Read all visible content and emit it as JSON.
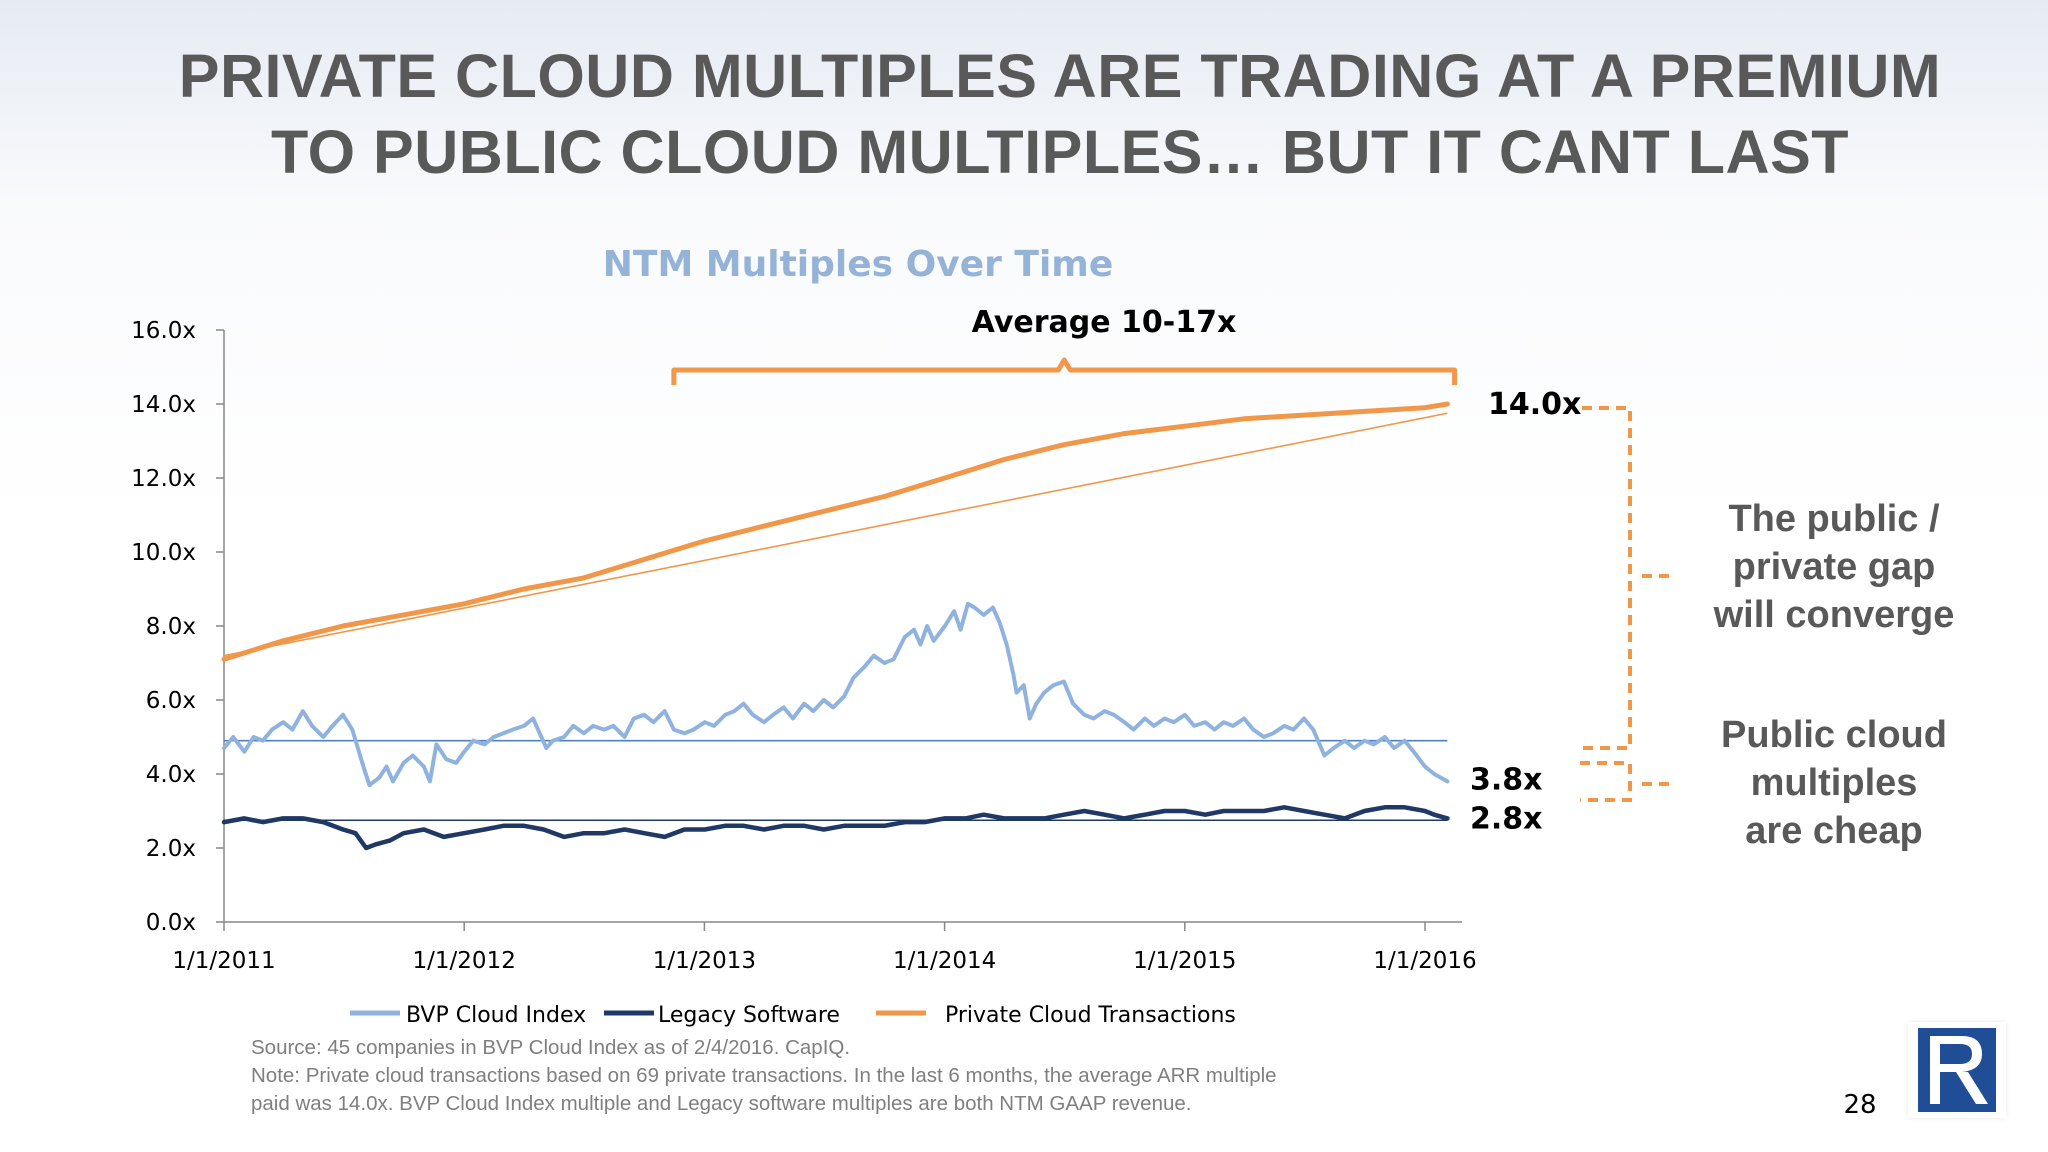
{
  "slide": {
    "title_lines": [
      "PRIVATE CLOUD MULTIPLES ARE TRADING AT A PREMIUM",
      "TO PUBLIC CLOUD MULTIPLES… BUT IT CANT LAST"
    ],
    "page_number": "28"
  },
  "callouts": {
    "gap": [
      "The public /",
      "private gap",
      "will converge"
    ],
    "cheap": [
      "Public cloud",
      "multiples",
      "are cheap"
    ]
  },
  "notes": {
    "source": "Source: 45 companies in BVP Cloud Index as of 2/4/2016.  CapIQ.",
    "note_line1": "Note: Private cloud transactions based on 69 private transactions.  In the last 6 months, the average ARR multiple",
    "note_line2": "paid was 14.0x.  BVP Cloud Index multiple and Legacy software multiples are both NTM GAAP revenue."
  },
  "colors": {
    "bvp": "#8fb3de",
    "legacy": "#1f3864",
    "private": "#f0974a",
    "title": "#595959",
    "chart_title": "#95b3d7",
    "logo": "#1f4e96"
  },
  "chart_data": {
    "type": "line",
    "title": "NTM Multiples Over Time",
    "xlabel": "",
    "ylabel": "",
    "x_ticks": [
      "1/1/2011",
      "1/1/2012",
      "1/1/2013",
      "1/1/2014",
      "1/1/2015",
      "1/1/2016"
    ],
    "y_ticks": [
      "0.0x",
      "2.0x",
      "4.0x",
      "6.0x",
      "8.0x",
      "10.0x",
      "12.0x",
      "14.0x",
      "16.0x"
    ],
    "xlim": [
      "2011-01-01",
      "2016-02-04"
    ],
    "ylim": [
      0,
      16
    ],
    "grid": false,
    "legend_position": "bottom",
    "series": [
      {
        "name": "BVP Cloud Index",
        "color": "#8fb3de",
        "points": [
          [
            "2011-01-01",
            4.7
          ],
          [
            "2011-01-15",
            5.0
          ],
          [
            "2011-02-01",
            4.6
          ],
          [
            "2011-02-15",
            5.0
          ],
          [
            "2011-03-01",
            4.9
          ],
          [
            "2011-03-15",
            5.2
          ],
          [
            "2011-04-01",
            5.4
          ],
          [
            "2011-04-15",
            5.2
          ],
          [
            "2011-05-01",
            5.7
          ],
          [
            "2011-05-15",
            5.3
          ],
          [
            "2011-06-01",
            5.0
          ],
          [
            "2011-06-15",
            5.3
          ],
          [
            "2011-07-01",
            5.6
          ],
          [
            "2011-07-15",
            5.2
          ],
          [
            "2011-08-01",
            4.2
          ],
          [
            "2011-08-10",
            3.7
          ],
          [
            "2011-08-25",
            3.9
          ],
          [
            "2011-09-05",
            4.2
          ],
          [
            "2011-09-15",
            3.8
          ],
          [
            "2011-10-01",
            4.3
          ],
          [
            "2011-10-15",
            4.5
          ],
          [
            "2011-11-01",
            4.2
          ],
          [
            "2011-11-10",
            3.8
          ],
          [
            "2011-11-20",
            4.8
          ],
          [
            "2011-12-05",
            4.4
          ],
          [
            "2011-12-20",
            4.3
          ],
          [
            "2012-01-01",
            4.6
          ],
          [
            "2012-01-15",
            4.9
          ],
          [
            "2012-02-01",
            4.8
          ],
          [
            "2012-02-15",
            5.0
          ],
          [
            "2012-03-01",
            5.1
          ],
          [
            "2012-03-15",
            5.2
          ],
          [
            "2012-04-01",
            5.3
          ],
          [
            "2012-04-15",
            5.5
          ],
          [
            "2012-04-25",
            5.1
          ],
          [
            "2012-05-05",
            4.7
          ],
          [
            "2012-05-15",
            4.9
          ],
          [
            "2012-06-01",
            5.0
          ],
          [
            "2012-06-15",
            5.3
          ],
          [
            "2012-07-01",
            5.1
          ],
          [
            "2012-07-15",
            5.3
          ],
          [
            "2012-08-01",
            5.2
          ],
          [
            "2012-08-15",
            5.3
          ],
          [
            "2012-09-01",
            5.0
          ],
          [
            "2012-09-15",
            5.5
          ],
          [
            "2012-10-01",
            5.6
          ],
          [
            "2012-10-15",
            5.4
          ],
          [
            "2012-11-01",
            5.7
          ],
          [
            "2012-11-15",
            5.2
          ],
          [
            "2012-12-01",
            5.1
          ],
          [
            "2012-12-15",
            5.2
          ],
          [
            "2013-01-01",
            5.4
          ],
          [
            "2013-01-15",
            5.3
          ],
          [
            "2013-02-01",
            5.6
          ],
          [
            "2013-02-15",
            5.7
          ],
          [
            "2013-03-01",
            5.9
          ],
          [
            "2013-03-15",
            5.6
          ],
          [
            "2013-04-01",
            5.4
          ],
          [
            "2013-04-15",
            5.6
          ],
          [
            "2013-05-01",
            5.8
          ],
          [
            "2013-05-15",
            5.5
          ],
          [
            "2013-06-01",
            5.9
          ],
          [
            "2013-06-15",
            5.7
          ],
          [
            "2013-07-01",
            6.0
          ],
          [
            "2013-07-15",
            5.8
          ],
          [
            "2013-08-01",
            6.1
          ],
          [
            "2013-08-15",
            6.6
          ],
          [
            "2013-09-01",
            6.9
          ],
          [
            "2013-09-15",
            7.2
          ],
          [
            "2013-10-01",
            7.0
          ],
          [
            "2013-10-15",
            7.1
          ],
          [
            "2013-11-01",
            7.7
          ],
          [
            "2013-11-15",
            7.9
          ],
          [
            "2013-11-25",
            7.5
          ],
          [
            "2013-12-05",
            8.0
          ],
          [
            "2013-12-15",
            7.6
          ],
          [
            "2014-01-01",
            8.0
          ],
          [
            "2014-01-15",
            8.4
          ],
          [
            "2014-01-25",
            7.9
          ],
          [
            "2014-02-05",
            8.6
          ],
          [
            "2014-02-15",
            8.5
          ],
          [
            "2014-03-01",
            8.3
          ],
          [
            "2014-03-15",
            8.5
          ],
          [
            "2014-03-25",
            8.1
          ],
          [
            "2014-04-05",
            7.5
          ],
          [
            "2014-04-15",
            6.7
          ],
          [
            "2014-04-20",
            6.2
          ],
          [
            "2014-05-01",
            6.4
          ],
          [
            "2014-05-10",
            5.5
          ],
          [
            "2014-05-20",
            5.9
          ],
          [
            "2014-06-01",
            6.2
          ],
          [
            "2014-06-15",
            6.4
          ],
          [
            "2014-07-01",
            6.5
          ],
          [
            "2014-07-15",
            5.9
          ],
          [
            "2014-08-01",
            5.6
          ],
          [
            "2014-08-15",
            5.5
          ],
          [
            "2014-09-01",
            5.7
          ],
          [
            "2014-09-15",
            5.6
          ],
          [
            "2014-10-01",
            5.4
          ],
          [
            "2014-10-15",
            5.2
          ],
          [
            "2014-11-01",
            5.5
          ],
          [
            "2014-11-15",
            5.3
          ],
          [
            "2014-12-01",
            5.5
          ],
          [
            "2014-12-15",
            5.4
          ],
          [
            "2015-01-01",
            5.6
          ],
          [
            "2015-01-15",
            5.3
          ],
          [
            "2015-02-01",
            5.4
          ],
          [
            "2015-02-15",
            5.2
          ],
          [
            "2015-03-01",
            5.4
          ],
          [
            "2015-03-15",
            5.3
          ],
          [
            "2015-04-01",
            5.5
          ],
          [
            "2015-04-15",
            5.2
          ],
          [
            "2015-05-01",
            5.0
          ],
          [
            "2015-05-15",
            5.1
          ],
          [
            "2015-06-01",
            5.3
          ],
          [
            "2015-06-15",
            5.2
          ],
          [
            "2015-07-01",
            5.5
          ],
          [
            "2015-07-15",
            5.2
          ],
          [
            "2015-08-01",
            4.5
          ],
          [
            "2015-08-15",
            4.7
          ],
          [
            "2015-09-01",
            4.9
          ],
          [
            "2015-09-15",
            4.7
          ],
          [
            "2015-10-01",
            4.9
          ],
          [
            "2015-10-15",
            4.8
          ],
          [
            "2015-11-01",
            5.0
          ],
          [
            "2015-11-15",
            4.7
          ],
          [
            "2015-12-01",
            4.9
          ],
          [
            "2015-12-15",
            4.6
          ],
          [
            "2016-01-01",
            4.2
          ],
          [
            "2016-01-15",
            4.0
          ],
          [
            "2016-02-04",
            3.8
          ]
        ]
      },
      {
        "name": "Legacy Software",
        "color": "#1f3864",
        "points": [
          [
            "2011-01-01",
            2.7
          ],
          [
            "2011-02-01",
            2.8
          ],
          [
            "2011-03-01",
            2.7
          ],
          [
            "2011-04-01",
            2.8
          ],
          [
            "2011-05-01",
            2.8
          ],
          [
            "2011-06-01",
            2.7
          ],
          [
            "2011-07-01",
            2.5
          ],
          [
            "2011-07-20",
            2.4
          ],
          [
            "2011-08-05",
            2.0
          ],
          [
            "2011-08-20",
            2.1
          ],
          [
            "2011-09-10",
            2.2
          ],
          [
            "2011-10-01",
            2.4
          ],
          [
            "2011-11-01",
            2.5
          ],
          [
            "2011-12-01",
            2.3
          ],
          [
            "2012-01-01",
            2.4
          ],
          [
            "2012-02-01",
            2.5
          ],
          [
            "2012-03-01",
            2.6
          ],
          [
            "2012-04-01",
            2.6
          ],
          [
            "2012-05-01",
            2.5
          ],
          [
            "2012-06-01",
            2.3
          ],
          [
            "2012-07-01",
            2.4
          ],
          [
            "2012-08-01",
            2.4
          ],
          [
            "2012-09-01",
            2.5
          ],
          [
            "2012-10-01",
            2.4
          ],
          [
            "2012-11-01",
            2.3
          ],
          [
            "2012-12-01",
            2.5
          ],
          [
            "2013-01-01",
            2.5
          ],
          [
            "2013-02-01",
            2.6
          ],
          [
            "2013-03-01",
            2.6
          ],
          [
            "2013-04-01",
            2.5
          ],
          [
            "2013-05-01",
            2.6
          ],
          [
            "2013-06-01",
            2.6
          ],
          [
            "2013-07-01",
            2.5
          ],
          [
            "2013-08-01",
            2.6
          ],
          [
            "2013-09-01",
            2.6
          ],
          [
            "2013-10-01",
            2.6
          ],
          [
            "2013-11-01",
            2.7
          ],
          [
            "2013-12-01",
            2.7
          ],
          [
            "2014-01-01",
            2.8
          ],
          [
            "2014-02-01",
            2.8
          ],
          [
            "2014-03-01",
            2.9
          ],
          [
            "2014-04-01",
            2.8
          ],
          [
            "2014-05-01",
            2.8
          ],
          [
            "2014-06-01",
            2.8
          ],
          [
            "2014-07-01",
            2.9
          ],
          [
            "2014-08-01",
            3.0
          ],
          [
            "2014-09-01",
            2.9
          ],
          [
            "2014-10-01",
            2.8
          ],
          [
            "2014-11-01",
            2.9
          ],
          [
            "2014-12-01",
            3.0
          ],
          [
            "2015-01-01",
            3.0
          ],
          [
            "2015-02-01",
            2.9
          ],
          [
            "2015-03-01",
            3.0
          ],
          [
            "2015-04-01",
            3.0
          ],
          [
            "2015-05-01",
            3.0
          ],
          [
            "2015-06-01",
            3.1
          ],
          [
            "2015-07-01",
            3.0
          ],
          [
            "2015-08-01",
            2.9
          ],
          [
            "2015-09-01",
            2.8
          ],
          [
            "2015-10-01",
            3.0
          ],
          [
            "2015-11-01",
            3.1
          ],
          [
            "2015-12-01",
            3.1
          ],
          [
            "2016-01-01",
            3.0
          ],
          [
            "2016-01-15",
            2.9
          ],
          [
            "2016-02-04",
            2.8
          ]
        ]
      },
      {
        "name": "Private Cloud Transactions",
        "color": "#f0974a",
        "points": [
          [
            "2011-01-01",
            7.1
          ],
          [
            "2011-04-01",
            7.6
          ],
          [
            "2011-07-01",
            8.0
          ],
          [
            "2011-10-01",
            8.3
          ],
          [
            "2012-01-01",
            8.6
          ],
          [
            "2012-04-01",
            9.0
          ],
          [
            "2012-07-01",
            9.3
          ],
          [
            "2012-10-01",
            9.8
          ],
          [
            "2013-01-01",
            10.3
          ],
          [
            "2013-04-01",
            10.7
          ],
          [
            "2013-07-01",
            11.1
          ],
          [
            "2013-10-01",
            11.5
          ],
          [
            "2014-01-01",
            12.0
          ],
          [
            "2014-04-01",
            12.5
          ],
          [
            "2014-07-01",
            12.9
          ],
          [
            "2014-10-01",
            13.2
          ],
          [
            "2015-01-01",
            13.4
          ],
          [
            "2015-04-01",
            13.6
          ],
          [
            "2015-07-01",
            13.7
          ],
          [
            "2015-10-01",
            13.8
          ],
          [
            "2016-01-01",
            13.9
          ],
          [
            "2016-02-04",
            14.0
          ]
        ]
      }
    ],
    "reference_lines": [
      {
        "name": "BVP Cloud Index average",
        "color": "#4f81bd",
        "from": [
          "2011-01-01",
          4.9
        ],
        "to": [
          "2016-02-04",
          4.9
        ]
      },
      {
        "name": "Legacy Software average",
        "color": "#1f3864",
        "from": [
          "2011-01-01",
          2.75
        ],
        "to": [
          "2016-02-04",
          2.75
        ]
      },
      {
        "name": "Private trend",
        "color": "#f0974a",
        "from": [
          "2011-01-01",
          7.2
        ],
        "to": [
          "2016-02-04",
          13.75
        ]
      }
    ],
    "annotations": {
      "bracket_label": "Average 10-17x",
      "bracket_range": [
        "2012-11-15",
        "2016-02-15"
      ],
      "end_labels": [
        {
          "text": "14.0x",
          "y": 14.0
        },
        {
          "text": "3.8x",
          "y": 3.8
        },
        {
          "text": "2.8x",
          "y": 2.8
        }
      ]
    }
  }
}
